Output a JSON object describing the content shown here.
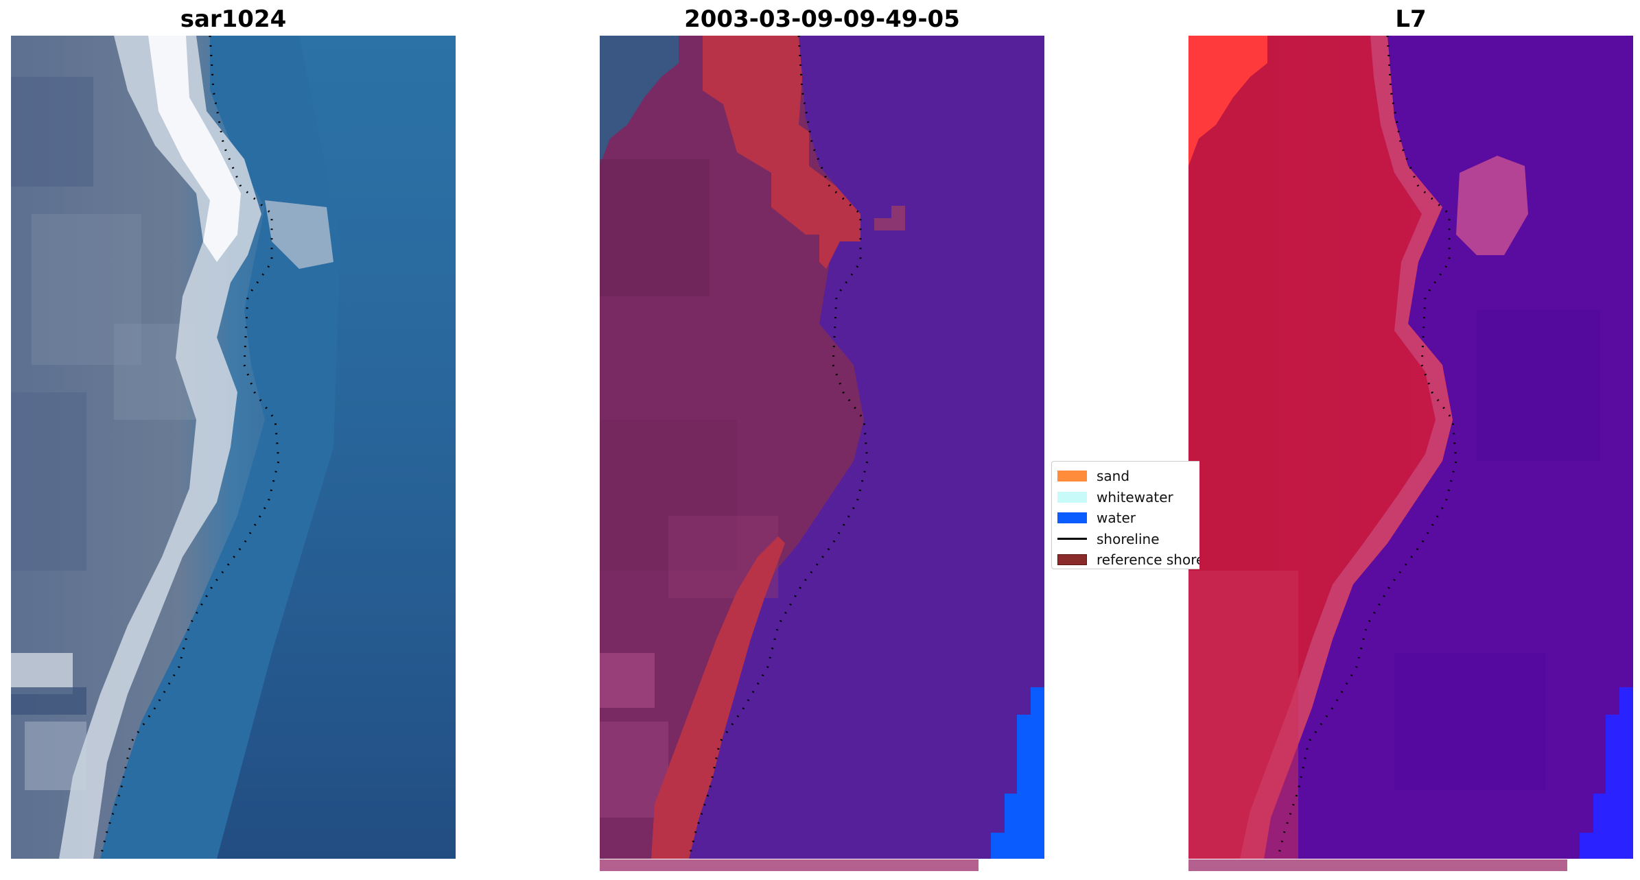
{
  "panels": [
    {
      "title": "sar1024"
    },
    {
      "title": "2003-03-09-09-49-05"
    },
    {
      "title": "L7"
    }
  ],
  "legend": {
    "items": [
      {
        "label": "sand",
        "color": "#ff8c3a",
        "kind": "patch"
      },
      {
        "label": "whitewater",
        "color": "#c8fafa",
        "kind": "patch"
      },
      {
        "label": "water",
        "color": "#0a5cff",
        "kind": "patch"
      },
      {
        "label": "shoreline",
        "color": "#000000",
        "kind": "line"
      },
      {
        "label": "reference shoreline buffer",
        "color": "#8b2a2a",
        "kind": "patch"
      }
    ]
  },
  "colors": {
    "rgb_water": "#2a6aa0",
    "rgb_land": "#6d7f9a",
    "rgb_beach": "#f0f2f5",
    "classified_water": "#55209a",
    "classified_land": "#7a2a63",
    "classified_sand": "#b83248",
    "classified_pure_water": "#0a5cff",
    "l7_land": "#c01840",
    "l7_water": "#5a0ba0",
    "l7_blue": "#2a22ff",
    "buffer_bar": "#b5618f"
  }
}
